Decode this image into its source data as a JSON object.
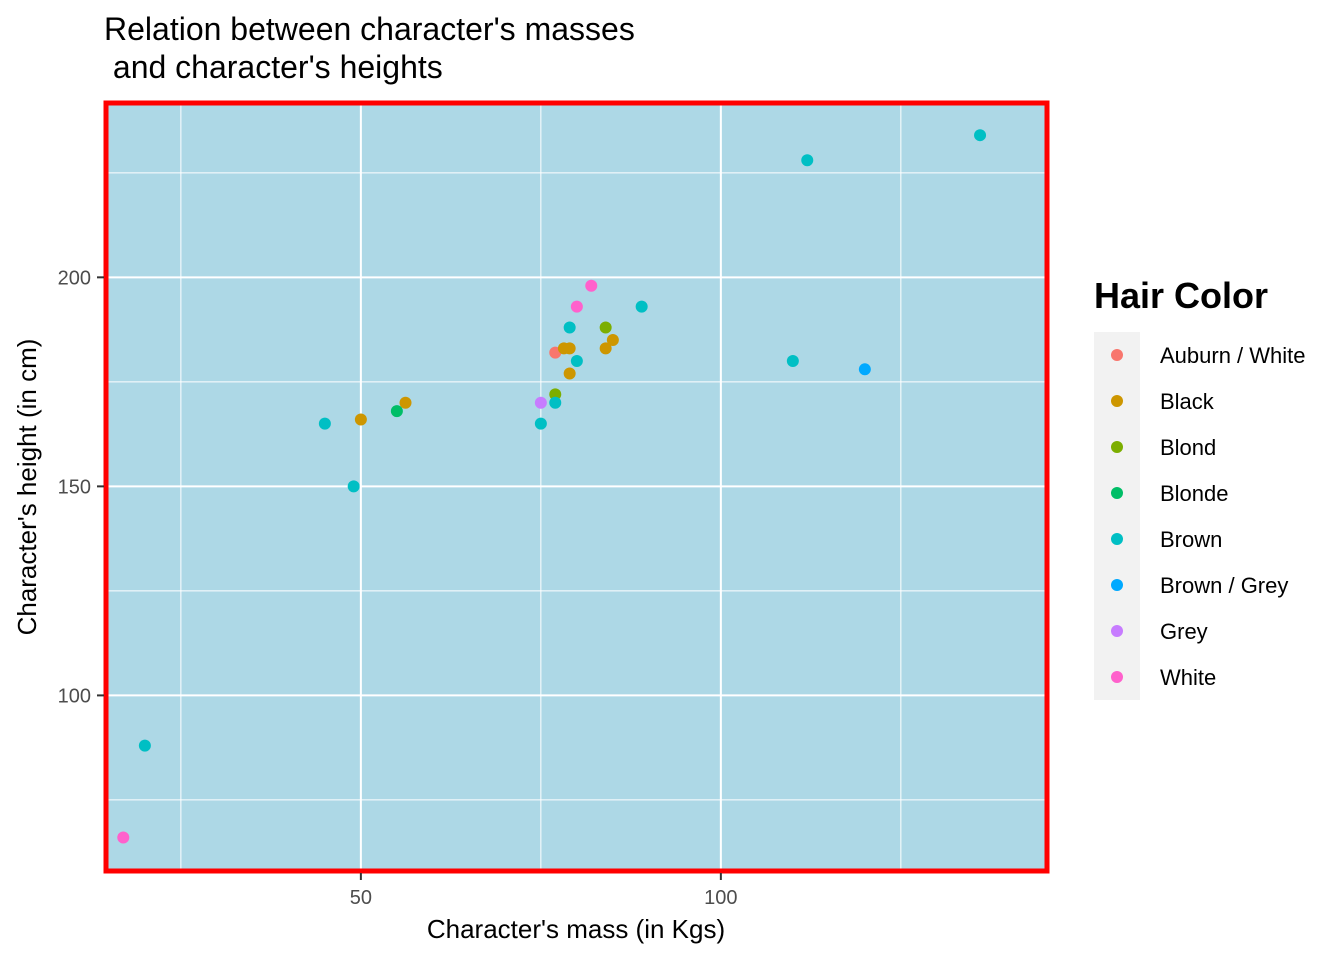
{
  "chart_data": {
    "type": "scatter",
    "title_lines": [
      "Relation between character's masses",
      " and character's heights"
    ],
    "xlabel": "Character's mass (in Kgs)",
    "ylabel": "Character's height (in cm)",
    "xlim": [
      14.6,
      145.3
    ],
    "ylim": [
      58.0,
      241.7
    ],
    "x_ticks": [
      50,
      100
    ],
    "y_ticks": [
      100,
      150,
      200
    ],
    "grid": true,
    "panel_background": "#add8e6",
    "panel_border": "#ff0000",
    "legend": {
      "title": "Hair Color",
      "position": "right",
      "items": [
        {
          "label": "Auburn / White",
          "color": "#F8766D"
        },
        {
          "label": "Black",
          "color": "#CD9600"
        },
        {
          "label": "Blond",
          "color": "#7CAE00"
        },
        {
          "label": "Blonde",
          "color": "#00BE67"
        },
        {
          "label": "Brown",
          "color": "#00BFC4"
        },
        {
          "label": "Brown / Grey",
          "color": "#00A9FF"
        },
        {
          "label": "Grey",
          "color": "#C77CFF"
        },
        {
          "label": "White",
          "color": "#FF61CC"
        }
      ]
    },
    "series": [
      {
        "name": "Auburn / White",
        "color": "#F8766D",
        "points": [
          [
            77,
            182
          ]
        ]
      },
      {
        "name": "Black",
        "color": "#CD9600",
        "points": [
          [
            50,
            166
          ],
          [
            56.2,
            170
          ],
          [
            78.2,
            183
          ],
          [
            79,
            183
          ],
          [
            79,
            177
          ],
          [
            84,
            183
          ],
          [
            85,
            185
          ]
        ]
      },
      {
        "name": "Blond",
        "color": "#7CAE00",
        "points": [
          [
            77,
            172
          ],
          [
            84,
            188
          ]
        ]
      },
      {
        "name": "Blonde",
        "color": "#00BE67",
        "points": [
          [
            55,
            168
          ]
        ]
      },
      {
        "name": "Brown",
        "color": "#00BFC4",
        "points": [
          [
            20,
            88
          ],
          [
            45,
            165
          ],
          [
            49,
            150
          ],
          [
            75,
            165
          ],
          [
            77,
            170
          ],
          [
            79,
            188
          ],
          [
            80,
            180
          ],
          [
            89,
            193
          ],
          [
            110,
            180
          ],
          [
            112,
            228
          ],
          [
            136,
            234
          ]
        ]
      },
      {
        "name": "Brown / Grey",
        "color": "#00A9FF",
        "points": [
          [
            120,
            178
          ]
        ]
      },
      {
        "name": "Grey",
        "color": "#C77CFF",
        "points": [
          [
            75,
            170
          ]
        ]
      },
      {
        "name": "White",
        "color": "#FF61CC",
        "points": [
          [
            17,
            66
          ],
          [
            80,
            193
          ],
          [
            82,
            198
          ]
        ]
      }
    ]
  }
}
